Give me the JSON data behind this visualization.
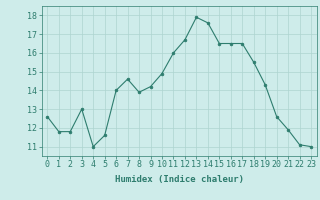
{
  "x": [
    0,
    1,
    2,
    3,
    4,
    5,
    6,
    7,
    8,
    9,
    10,
    11,
    12,
    13,
    14,
    15,
    16,
    17,
    18,
    19,
    20,
    21,
    22,
    23
  ],
  "y": [
    12.6,
    11.8,
    11.8,
    13.0,
    11.0,
    11.6,
    14.0,
    14.6,
    13.9,
    14.2,
    14.9,
    16.0,
    16.7,
    17.9,
    17.6,
    16.5,
    16.5,
    16.5,
    15.5,
    14.3,
    12.6,
    11.9,
    11.1,
    11.0
  ],
  "line_color": "#2e7d6e",
  "marker": "o",
  "marker_size": 2,
  "bg_color": "#ceecea",
  "grid_color": "#aed4d0",
  "tick_color": "#2e7d6e",
  "xlabel": "Humidex (Indice chaleur)",
  "ylim": [
    10.5,
    18.5
  ],
  "xlim": [
    -0.5,
    23.5
  ],
  "yticks": [
    11,
    12,
    13,
    14,
    15,
    16,
    17,
    18
  ],
  "xticks": [
    0,
    1,
    2,
    3,
    4,
    5,
    6,
    7,
    8,
    9,
    10,
    11,
    12,
    13,
    14,
    15,
    16,
    17,
    18,
    19,
    20,
    21,
    22,
    23
  ],
  "label_fontsize": 6.5,
  "tick_fontsize": 6
}
